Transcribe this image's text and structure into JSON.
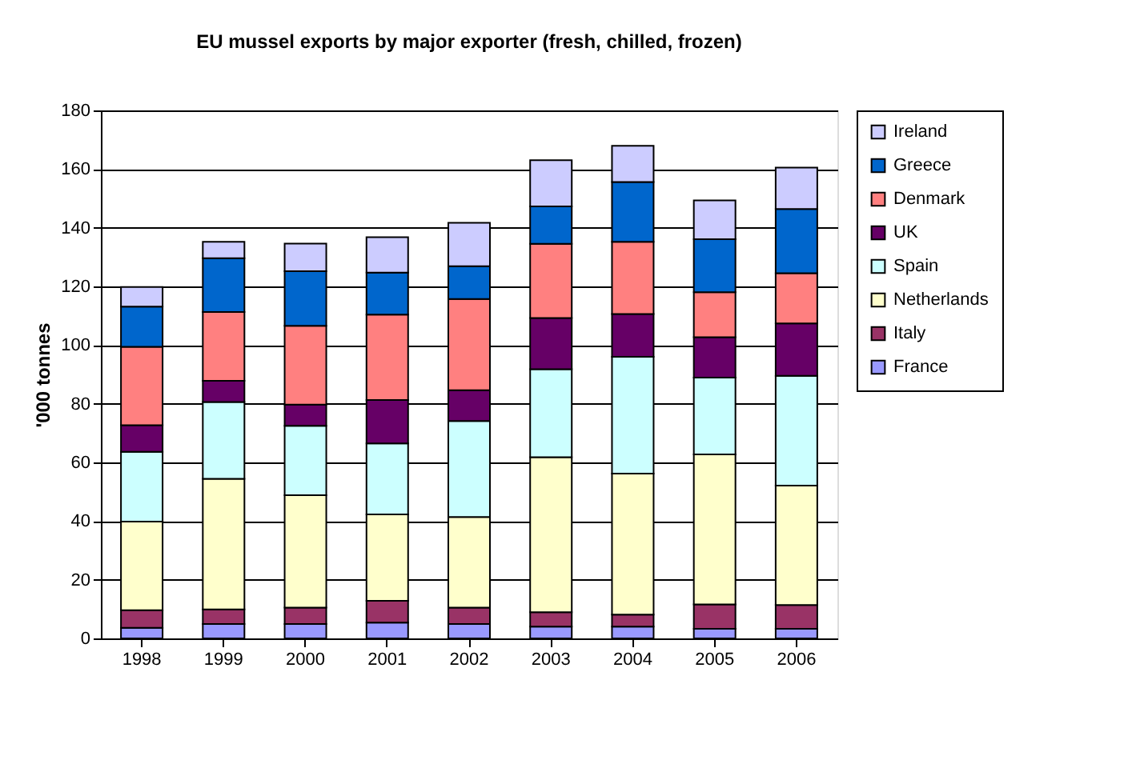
{
  "chart_data": {
    "type": "bar",
    "title": "EU mussel exports by major exporter (fresh, chilled, frozen)",
    "ylabel": "'000 tonnes",
    "stacked": true,
    "legend": "right",
    "grid": "y",
    "categories": [
      "1998",
      "1999",
      "2000",
      "2001",
      "2002",
      "2003",
      "2004",
      "2005",
      "2006"
    ],
    "ylim": [
      0,
      180
    ],
    "yticks": [
      0,
      20,
      40,
      60,
      80,
      100,
      120,
      140,
      160,
      180
    ],
    "series": [
      {
        "name": "France",
        "color": "#9999ff",
        "values": [
          3.6,
          4.9,
          4.9,
          5.4,
          4.9,
          4.0,
          4.0,
          3.3,
          3.3
        ]
      },
      {
        "name": "Italy",
        "color": "#993366",
        "values": [
          6.0,
          5.0,
          5.6,
          7.4,
          5.6,
          4.9,
          4.1,
          8.3,
          8.1
        ]
      },
      {
        "name": "Netherlands",
        "color": "#ffffcc",
        "values": [
          30.2,
          44.5,
          38.3,
          29.5,
          30.9,
          52.9,
          48.1,
          51.1,
          40.7
        ]
      },
      {
        "name": "Spain",
        "color": "#ccffff",
        "values": [
          23.8,
          26.2,
          23.7,
          24.2,
          32.7,
          30.0,
          39.8,
          26.2,
          37.4
        ]
      },
      {
        "name": "UK",
        "color": "#660066",
        "values": [
          9.1,
          7.2,
          7.2,
          14.8,
          10.5,
          17.4,
          14.6,
          13.8,
          17.9
        ]
      },
      {
        "name": "Denmark",
        "color": "#ff8080",
        "values": [
          26.7,
          23.5,
          26.9,
          29.1,
          31.1,
          25.3,
          24.6,
          15.3,
          17.1
        ]
      },
      {
        "name": "Greece",
        "color": "#0066cc",
        "values": [
          13.7,
          18.3,
          18.6,
          14.3,
          11.2,
          12.8,
          20.4,
          18.1,
          21.9
        ]
      },
      {
        "name": "Ireland",
        "color": "#ccccff",
        "values": [
          6.7,
          5.6,
          9.4,
          12.1,
          14.8,
          15.7,
          12.3,
          13.2,
          14.1
        ]
      }
    ]
  }
}
